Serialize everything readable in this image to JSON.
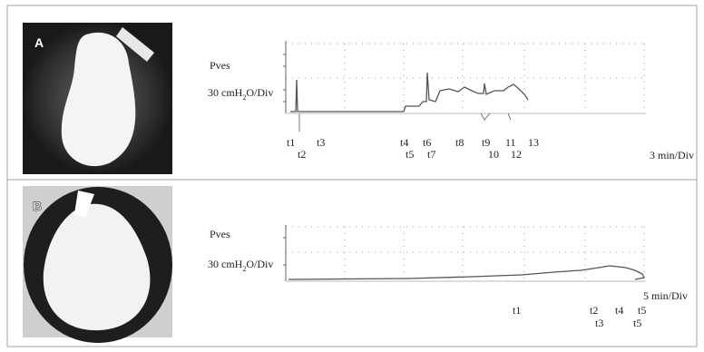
{
  "panel_a": {
    "letter": "A",
    "signal": "Pves",
    "unit": {
      "prefix": "30 cmH",
      "sub": "2",
      "suffix": "O/Div"
    },
    "time_scale": "3 min/Div",
    "markers": [
      "t1",
      "t2",
      "t3",
      "t4",
      "t5",
      "t6",
      "t7",
      "t8",
      "t9",
      "10",
      "11",
      "12",
      "13"
    ]
  },
  "panel_b": {
    "letter": "B",
    "signal": "Pves",
    "unit": {
      "prefix": "30 cmH",
      "sub": "2",
      "suffix": "O/Div"
    },
    "time_scale": "5 min/Div",
    "markers": [
      "t1",
      "t2",
      "t3",
      "t4",
      "t5",
      "t5"
    ]
  }
}
